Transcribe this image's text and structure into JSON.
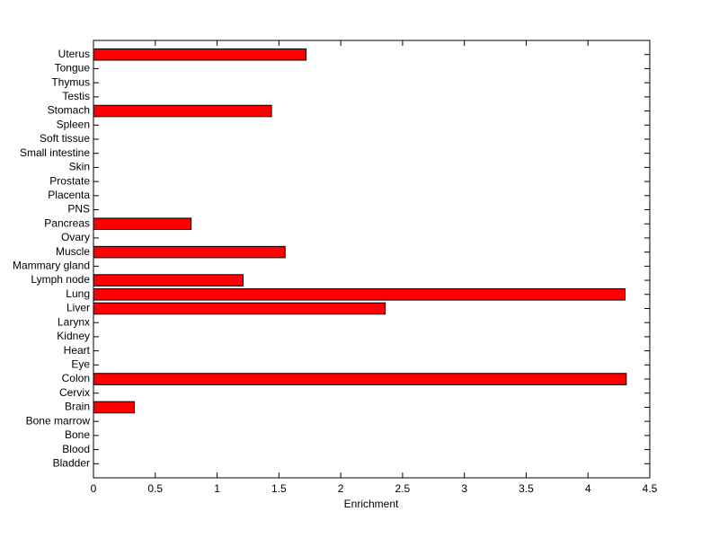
{
  "chart_data": {
    "type": "barh",
    "xlabel": "Enrichment",
    "categories": [
      "Bladder",
      "Blood",
      "Bone",
      "Bone marrow",
      "Brain",
      "Cervix",
      "Colon",
      "Eye",
      "Heart",
      "Kidney",
      "Larynx",
      "Liver",
      "Lung",
      "Lymph node",
      "Mammary gland",
      "Muscle",
      "Ovary",
      "Pancreas",
      "PNS",
      "Placenta",
      "Prostate",
      "Skin",
      "Small intestine",
      "Soft tissue",
      "Spleen",
      "Stomach",
      "Testis",
      "Thymus",
      "Tongue",
      "Uterus"
    ],
    "values": [
      0,
      0,
      0,
      0,
      0.33,
      0,
      4.31,
      0,
      0,
      0,
      0,
      2.36,
      4.3,
      1.21,
      0,
      1.55,
      0,
      0.79,
      0,
      0,
      0,
      0,
      0,
      0,
      0,
      1.44,
      0,
      0,
      0,
      1.72
    ],
    "color": "#ff0000",
    "xlim": [
      0,
      4.5
    ],
    "xticks": [
      0,
      0.5,
      1,
      1.5,
      2,
      2.5,
      3,
      3.5,
      4,
      4.5
    ],
    "grid": false
  }
}
